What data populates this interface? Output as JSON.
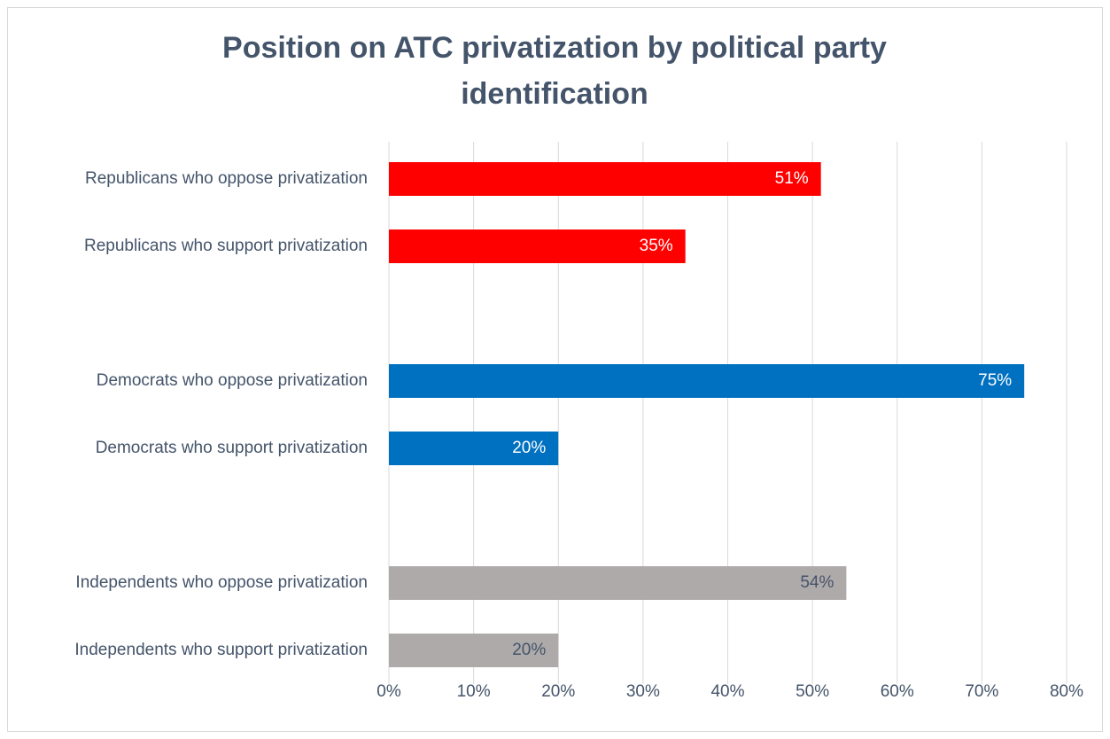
{
  "chart_data": {
    "type": "hbar",
    "title": "Position on ATC privatization by political party identification",
    "categories": [
      "Republicans who oppose privatization",
      "Republicans who support privatization",
      null,
      "Democrats who oppose privatization",
      "Democrats who support privatization",
      null,
      "Independents who oppose privatization",
      "Independents who support privatization"
    ],
    "values": [
      51,
      35,
      null,
      75,
      20,
      null,
      54,
      20
    ],
    "value_labels": [
      "51%",
      "35%",
      null,
      "75%",
      "20%",
      null,
      "54%",
      "20%"
    ],
    "colors": [
      "#ff0000",
      "#ff0000",
      null,
      "#0070c0",
      "#0070c0",
      null,
      "#aeaaaa",
      "#aeaaaa"
    ],
    "label_colors": [
      "#ffffff",
      "#ffffff",
      null,
      "#ffffff",
      "#ffffff",
      null,
      "#44546a",
      "#44546a"
    ],
    "xlim": [
      0,
      80
    ],
    "xticks": [
      {
        "value": 0,
        "label": "0%"
      },
      {
        "value": 10,
        "label": "10%"
      },
      {
        "value": 20,
        "label": "20%"
      },
      {
        "value": 30,
        "label": "30%"
      },
      {
        "value": 40,
        "label": "40%"
      },
      {
        "value": 50,
        "label": "50%"
      },
      {
        "value": 60,
        "label": "60%"
      },
      {
        "value": 70,
        "label": "70%"
      },
      {
        "value": 80,
        "label": "80%"
      }
    ],
    "grid": true
  }
}
